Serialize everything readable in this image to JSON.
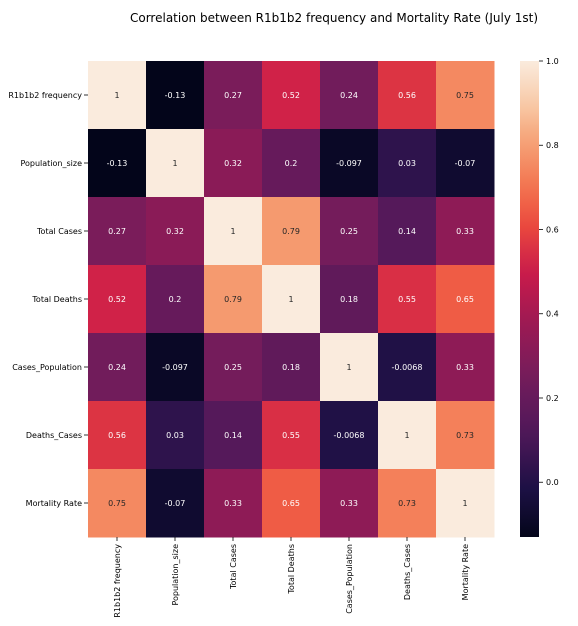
{
  "chart_data": {
    "type": "heatmap",
    "title": "Correlation between R1b1b2 frequency and Mortality Rate (July 1st)",
    "xlabel": "",
    "ylabel": "",
    "row_labels": [
      "R1b1b2 frequency",
      "Population_size",
      "Total Cases",
      "Total Deaths",
      "Cases_Population",
      "Deaths_Cases",
      "Mortality Rate"
    ],
    "col_labels": [
      "R1b1b2 frequency",
      "Population_size",
      "Total Cases",
      "Total Deaths",
      "Cases_Population",
      "Deaths_Cases",
      "Mortality Rate"
    ],
    "values": [
      [
        1,
        -0.13,
        0.27,
        0.52,
        0.24,
        0.56,
        0.75
      ],
      [
        -0.13,
        1,
        0.32,
        0.2,
        -0.097,
        0.03,
        -0.07
      ],
      [
        0.27,
        0.32,
        1,
        0.79,
        0.25,
        0.14,
        0.33
      ],
      [
        0.52,
        0.2,
        0.79,
        1,
        0.18,
        0.55,
        0.65
      ],
      [
        0.24,
        -0.097,
        0.25,
        0.18,
        1,
        -0.0068,
        0.33
      ],
      [
        0.56,
        0.03,
        0.14,
        0.55,
        -0.0068,
        1,
        0.73
      ],
      [
        0.75,
        -0.07,
        0.33,
        0.65,
        0.33,
        0.73,
        1
      ]
    ],
    "value_range": [
      -0.13,
      1.0
    ],
    "colormap": "rocket",
    "colorbar_ticks": [
      0.0,
      0.2,
      0.4,
      0.6,
      0.8,
      1.0
    ],
    "colorbar_tick_labels": [
      "0.0",
      "0.2",
      "0.4",
      "0.6",
      "0.8",
      "1.0"
    ],
    "grid": false
  }
}
